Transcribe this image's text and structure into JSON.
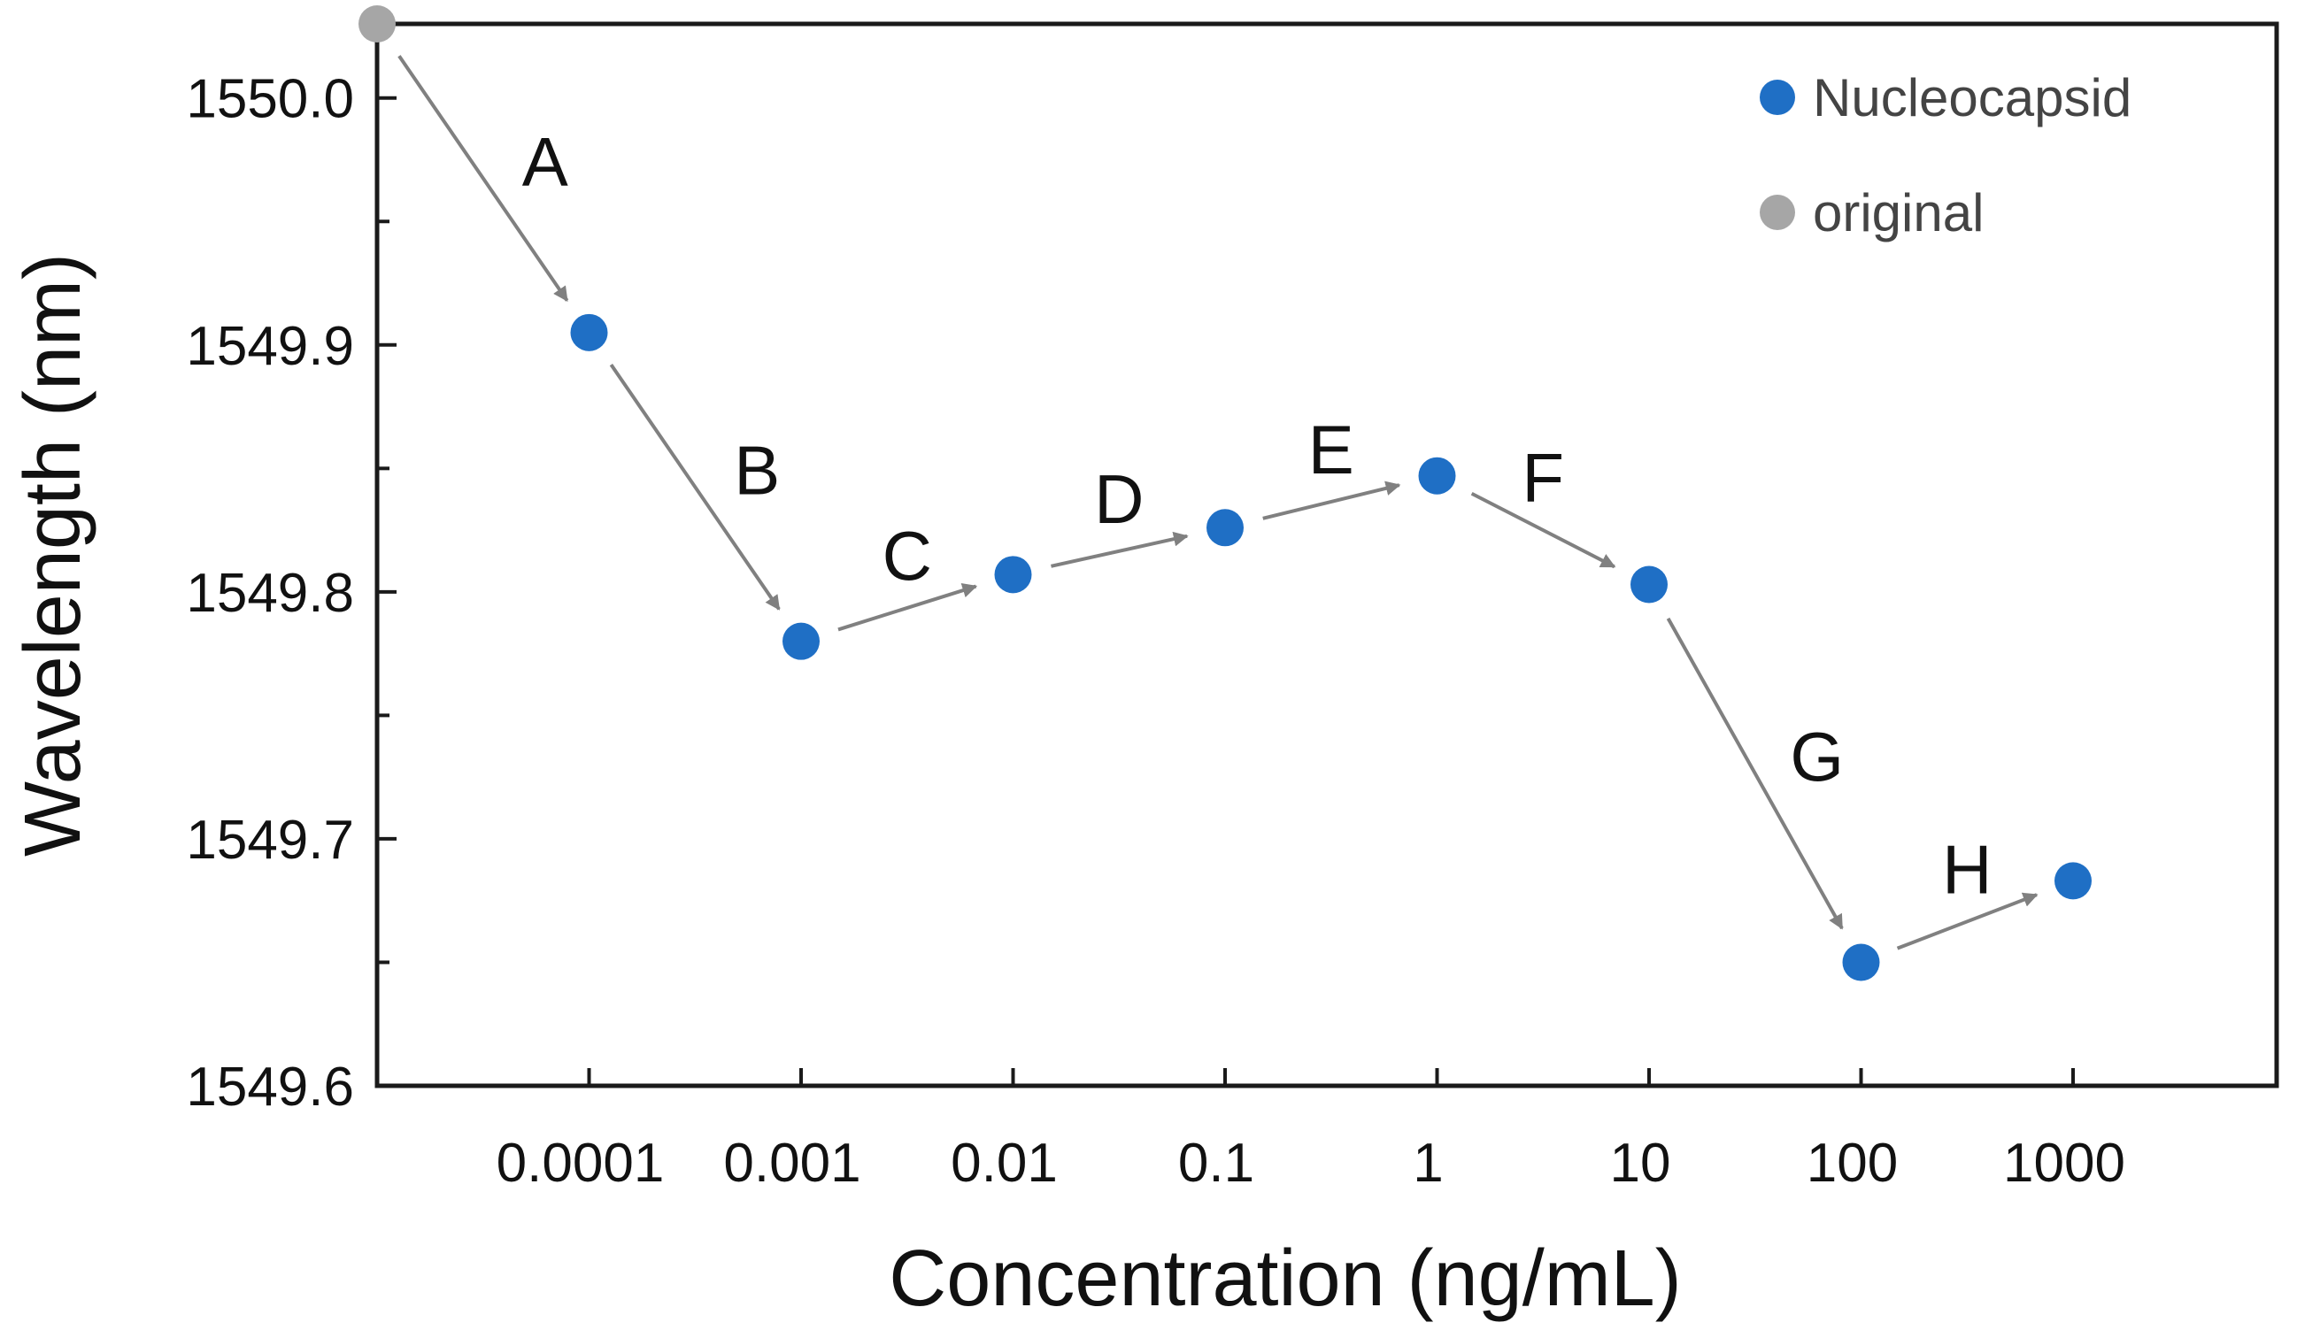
{
  "chart_data": {
    "type": "scatter",
    "title": "",
    "xlabel": "Concentration (ng/mL)",
    "ylabel": "Wavelength (nm)",
    "ylim": [
      1549.6,
      1550.03
    ],
    "y_ticks": [
      "1549.6",
      "1549.7",
      "1549.8",
      "1549.9",
      "1550.0"
    ],
    "y_tick_values": [
      1549.6,
      1549.7,
      1549.8,
      1549.9,
      1550.0
    ],
    "categories": [
      "",
      "0.0001",
      "0.001",
      "0.01",
      "0.1",
      "1",
      "10",
      "100",
      "1000"
    ],
    "series": [
      {
        "name": "original",
        "color": "#a6a6a6",
        "points": [
          {
            "category": "",
            "value": 1550.03
          }
        ]
      },
      {
        "name": "Nucleocapsid",
        "color": "#1f6fc5",
        "points": [
          {
            "category": "0.0001",
            "value": 1549.905
          },
          {
            "category": "0.001",
            "value": 1549.78
          },
          {
            "category": "0.01",
            "value": 1549.807
          },
          {
            "category": "0.1",
            "value": 1549.826
          },
          {
            "category": "1",
            "value": 1549.847
          },
          {
            "category": "10",
            "value": 1549.803
          },
          {
            "category": "100",
            "value": 1549.65
          },
          {
            "category": "1000",
            "value": 1549.683
          }
        ]
      }
    ],
    "annotations": [
      {
        "label": "A",
        "from": 0,
        "to": 1
      },
      {
        "label": "B",
        "from": 1,
        "to": 2
      },
      {
        "label": "C",
        "from": 2,
        "to": 3
      },
      {
        "label": "D",
        "from": 3,
        "to": 4
      },
      {
        "label": "E",
        "from": 4,
        "to": 5
      },
      {
        "label": "F",
        "from": 5,
        "to": 6
      },
      {
        "label": "G",
        "from": 6,
        "to": 7
      },
      {
        "label": "H",
        "from": 7,
        "to": 8
      }
    ],
    "legend": {
      "position": "top-right",
      "entries": [
        {
          "name": "Nucleocapsid",
          "color": "#1f6fc5"
        },
        {
          "name": "original",
          "color": "#a6a6a6"
        }
      ]
    },
    "arrow_color": "#808080"
  }
}
